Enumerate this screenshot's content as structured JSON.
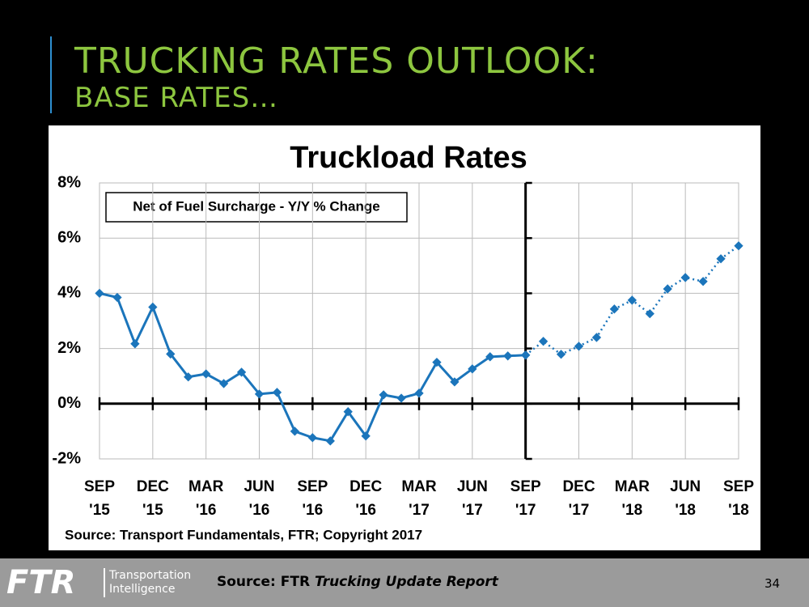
{
  "slide": {
    "title": "TRUCKING RATES OUTLOOK:",
    "subtitle": "BASE RATES…",
    "logo": "FTR",
    "logo_line1": "Transportation",
    "logo_line2": "Intelligence",
    "source_prefix": "Source: FTR",
    "source_title": "Trucking Update Report",
    "page": "34"
  },
  "chart_data": {
    "type": "line",
    "title": "Truckload Rates",
    "annotation": "Net of Fuel Surcharge - Y/Y % Change",
    "source": "Source: Transport Fundamentals,  FTR; Copyright 2017",
    "categories": [
      "SEP\n'15",
      null,
      null,
      "DEC\n'15",
      null,
      null,
      "MAR\n'16",
      null,
      null,
      "JUN\n'16",
      null,
      null,
      "SEP\n'16",
      null,
      null,
      "DEC\n'16",
      null,
      null,
      "MAR\n'17",
      null,
      null,
      "JUN\n'17",
      null,
      null,
      "SEP\n'17",
      null,
      null,
      "DEC\n'17",
      null,
      null,
      "MAR\n'18",
      null,
      null,
      "JUN\n'18",
      null,
      null,
      "SEP\n'18"
    ],
    "series": [
      {
        "color": "#1b75bb",
        "style": "solid",
        "values": [
          4.0,
          3.85,
          2.17,
          3.5,
          1.8,
          0.97,
          1.08,
          0.73,
          1.14,
          0.35,
          0.41,
          -1.0,
          -1.23,
          -1.35,
          -0.29,
          -1.17,
          0.32,
          0.2,
          0.38,
          1.5,
          0.79,
          1.26,
          1.7,
          1.73,
          1.76,
          null,
          null,
          null,
          null,
          null,
          null,
          null,
          null,
          null,
          null,
          null,
          null
        ]
      },
      {
        "color": "#1b75bb",
        "style": "dotted",
        "values": [
          null,
          null,
          null,
          null,
          null,
          null,
          null,
          null,
          null,
          null,
          null,
          null,
          null,
          null,
          null,
          null,
          null,
          null,
          null,
          null,
          null,
          null,
          null,
          null,
          1.76,
          2.26,
          1.79,
          2.08,
          2.4,
          3.43,
          3.75,
          3.26,
          4.16,
          4.57,
          4.43,
          5.25,
          5.72
        ]
      }
    ],
    "ylim": [
      -2,
      8
    ],
    "yticks": [
      {
        "value": -2,
        "label": "-2%"
      },
      {
        "value": 0,
        "label": "0%"
      },
      {
        "value": 2,
        "label": "2%"
      },
      {
        "value": 4,
        "label": "4%"
      },
      {
        "value": 6,
        "label": "6%"
      },
      {
        "value": 8,
        "label": "8%"
      }
    ],
    "grid": true
  }
}
